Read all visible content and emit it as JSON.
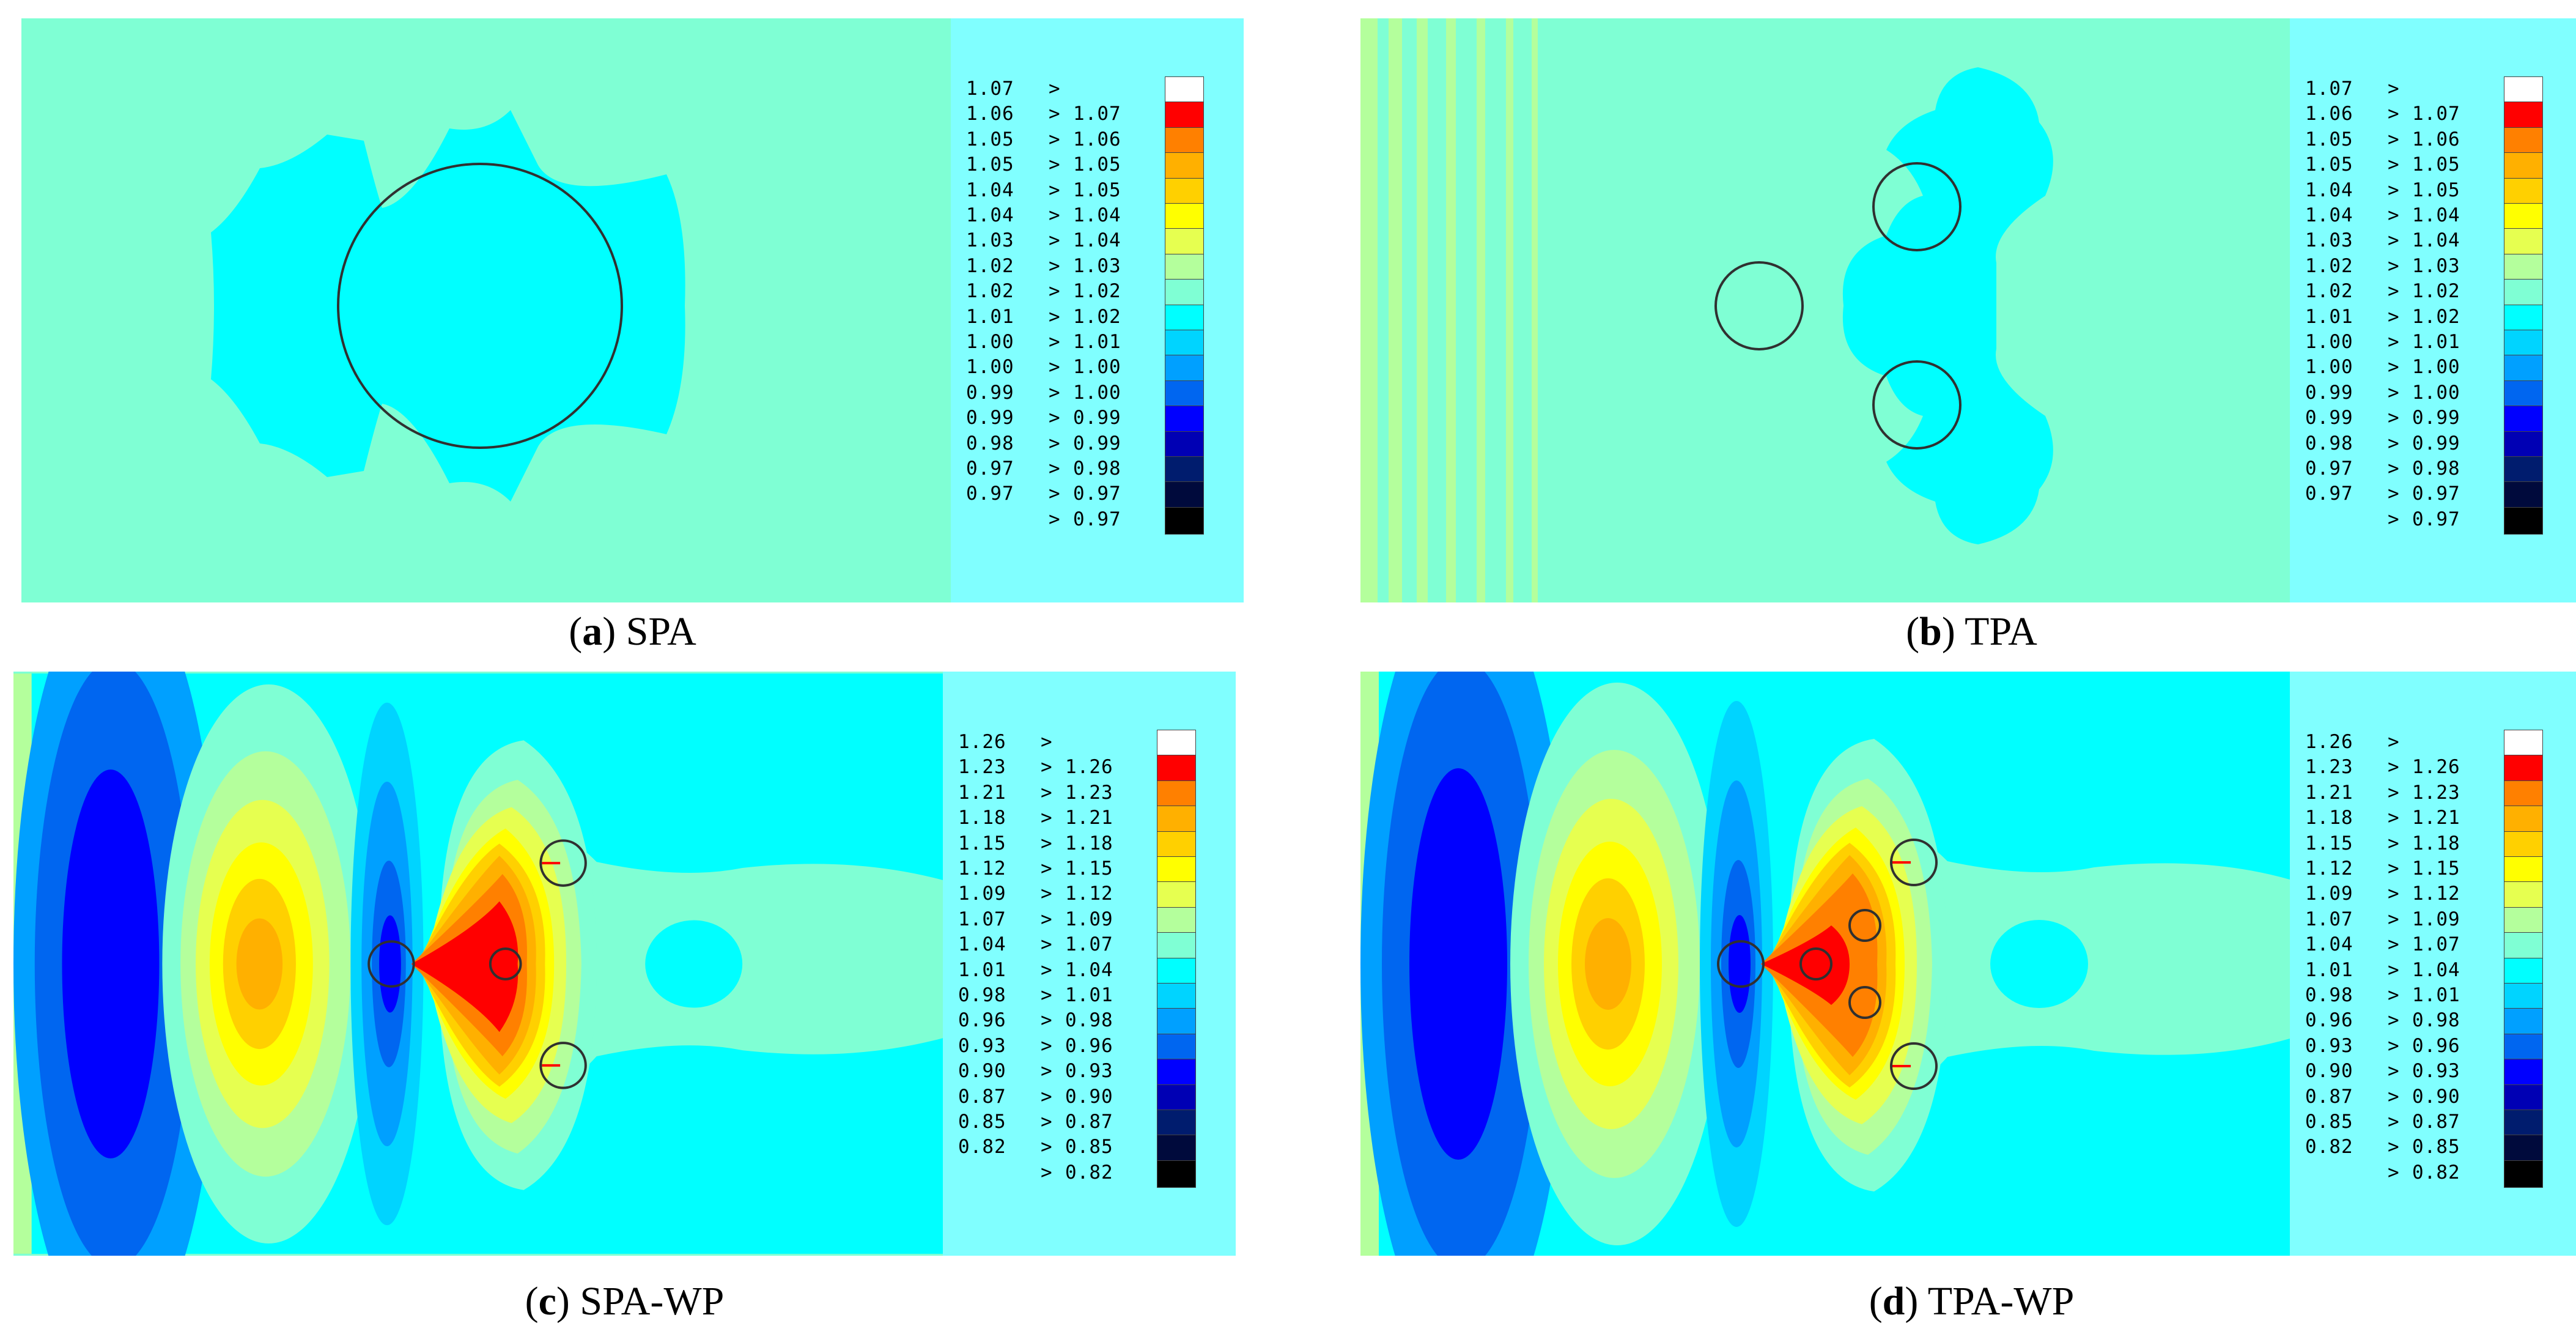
{
  "palette": {
    "c0": "#000000",
    "c1": "#001c6e",
    "c2": "#0000b4",
    "c3": "#0000ff",
    "c4": "#0066f0",
    "c5": "#00a0ff",
    "c6": "#00d4ff",
    "c7": "#00ffff",
    "c8": "#7fffd4",
    "c9": "#b4ff9c",
    "c10": "#e6ff50",
    "c11": "#ffff00",
    "c12": "#ffd000",
    "c13": "#ffb000",
    "c14": "#ff8000",
    "c15": "#ff0000",
    "c16": "#ffffff",
    "frame": "#80ffff",
    "outline": "#303030"
  },
  "legend_small": [
    {
      "lo": "1.07",
      "hi": "",
      "color": "#ffffff"
    },
    {
      "lo": "1.06",
      "hi": "1.07",
      "color": "#ff0000"
    },
    {
      "lo": "1.05",
      "hi": "1.06",
      "color": "#ff8000"
    },
    {
      "lo": "1.05",
      "hi": "1.05",
      "color": "#ffb000"
    },
    {
      "lo": "1.04",
      "hi": "1.05",
      "color": "#ffd000"
    },
    {
      "lo": "1.04",
      "hi": "1.04",
      "color": "#ffff00"
    },
    {
      "lo": "1.03",
      "hi": "1.04",
      "color": "#e6ff50"
    },
    {
      "lo": "1.02",
      "hi": "1.03",
      "color": "#b4ff9c"
    },
    {
      "lo": "1.02",
      "hi": "1.02",
      "color": "#7fffd4"
    },
    {
      "lo": "1.01",
      "hi": "1.02",
      "color": "#00ffff"
    },
    {
      "lo": "1.00",
      "hi": "1.01",
      "color": "#00d4ff"
    },
    {
      "lo": "1.00",
      "hi": "1.00",
      "color": "#00a0ff"
    },
    {
      "lo": "0.99",
      "hi": "1.00",
      "color": "#0066f0"
    },
    {
      "lo": "0.99",
      "hi": "0.99",
      "color": "#0000ff"
    },
    {
      "lo": "0.98",
      "hi": "0.99",
      "color": "#0000b4"
    },
    {
      "lo": "0.97",
      "hi": "0.98",
      "color": "#001c6e"
    },
    {
      "lo": "0.97",
      "hi": "0.97",
      "color": "#000a3c"
    },
    {
      "lo": "",
      "hi": "0.97",
      "color": "#000000"
    }
  ],
  "legend_large": [
    {
      "lo": "1.26",
      "hi": "",
      "color": "#ffffff"
    },
    {
      "lo": "1.23",
      "hi": "1.26",
      "color": "#ff0000"
    },
    {
      "lo": "1.21",
      "hi": "1.23",
      "color": "#ff8000"
    },
    {
      "lo": "1.18",
      "hi": "1.21",
      "color": "#ffb000"
    },
    {
      "lo": "1.15",
      "hi": "1.18",
      "color": "#ffd000"
    },
    {
      "lo": "1.12",
      "hi": "1.15",
      "color": "#ffff00"
    },
    {
      "lo": "1.09",
      "hi": "1.12",
      "color": "#e6ff50"
    },
    {
      "lo": "1.07",
      "hi": "1.09",
      "color": "#b4ff9c"
    },
    {
      "lo": "1.04",
      "hi": "1.07",
      "color": "#7fffd4"
    },
    {
      "lo": "1.01",
      "hi": "1.04",
      "color": "#00ffff"
    },
    {
      "lo": "0.98",
      "hi": "1.01",
      "color": "#00d4ff"
    },
    {
      "lo": "0.96",
      "hi": "0.98",
      "color": "#00a0ff"
    },
    {
      "lo": "0.93",
      "hi": "0.96",
      "color": "#0066f0"
    },
    {
      "lo": "0.90",
      "hi": "0.93",
      "color": "#0000ff"
    },
    {
      "lo": "0.87",
      "hi": "0.90",
      "color": "#0000b4"
    },
    {
      "lo": "0.85",
      "hi": "0.87",
      "color": "#001c6e"
    },
    {
      "lo": "0.82",
      "hi": "0.85",
      "color": "#000a3c"
    },
    {
      "lo": "",
      "hi": "0.82",
      "color": "#000000"
    }
  ],
  "legend_gt_symbol": ">",
  "captions": {
    "a": {
      "letter": "a",
      "name": "SPA"
    },
    "b": {
      "letter": "b",
      "name": "TPA"
    },
    "c": {
      "letter": "c",
      "name": "SPA-WP"
    },
    "d": {
      "letter": "d",
      "name": "TPA-WP"
    }
  },
  "caption_parts": {
    "open": "(",
    "close": ") "
  }
}
